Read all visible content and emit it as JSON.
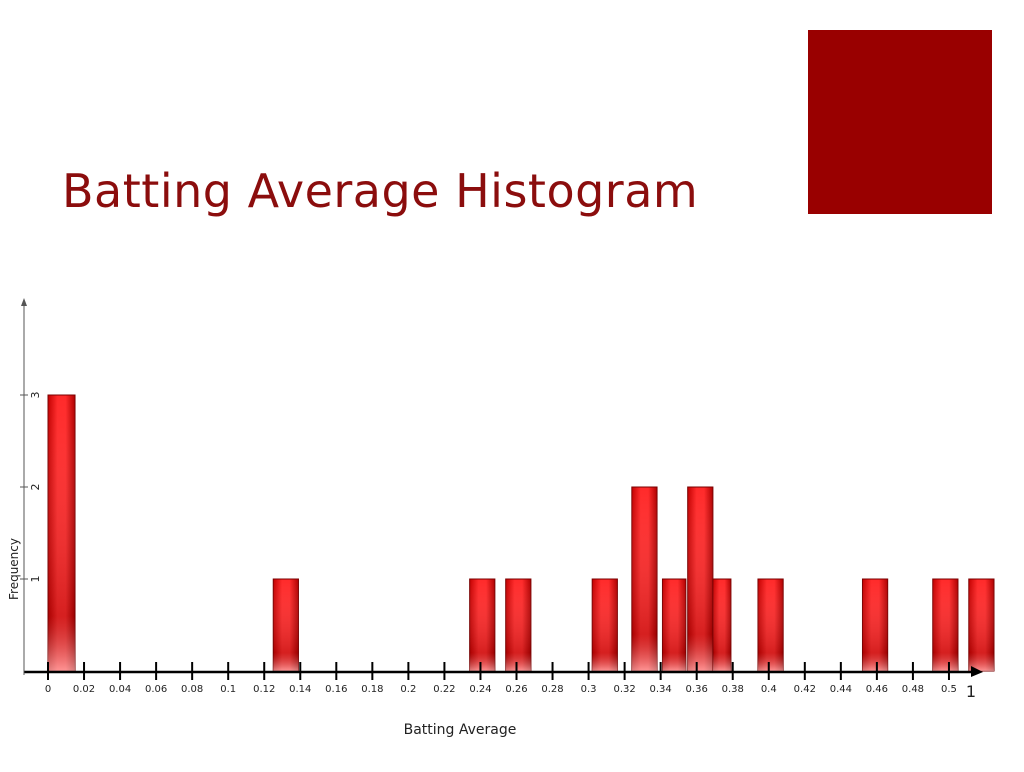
{
  "slide": {
    "title": "Batting Average Histogram"
  },
  "colors": {
    "title": "#8b0d0d",
    "accent_square": "#990000",
    "bar_fill": "#ee1111",
    "bar_stroke": "#7a0000",
    "axis": "#000000"
  },
  "chart_data": {
    "type": "bar",
    "xlabel": "Batting Average",
    "ylabel": "Frequency",
    "xlim": [
      0,
      0.52
    ],
    "ylim": [
      0,
      4
    ],
    "x_ticks": [
      "0",
      "0.02",
      "0.04",
      "0.06",
      "0.08",
      "0.1",
      "0.12",
      "0.14",
      "0.16",
      "0.18",
      "0.2",
      "0.22",
      "0.24",
      "0.26",
      "0.28",
      "0.3",
      "0.32",
      "0.34",
      "0.36",
      "0.38",
      "0.4",
      "0.42",
      "0.44",
      "0.46",
      "0.48",
      "0.5"
    ],
    "y_ticks": [
      "1",
      "2",
      "3"
    ],
    "axis_end_label": "1",
    "bars": [
      {
        "x0": 0.0,
        "x1": 0.015,
        "value": 3
      },
      {
        "x0": 0.125,
        "x1": 0.139,
        "value": 1
      },
      {
        "x0": 0.234,
        "x1": 0.248,
        "value": 1
      },
      {
        "x0": 0.254,
        "x1": 0.268,
        "value": 1
      },
      {
        "x0": 0.302,
        "x1": 0.316,
        "value": 1
      },
      {
        "x0": 0.324,
        "x1": 0.338,
        "value": 2
      },
      {
        "x0": 0.341,
        "x1": 0.354,
        "value": 1
      },
      {
        "x0": 0.355,
        "x1": 0.369,
        "value": 2
      },
      {
        "x0": 0.369,
        "x1": 0.379,
        "value": 1
      },
      {
        "x0": 0.394,
        "x1": 0.408,
        "value": 1
      },
      {
        "x0": 0.452,
        "x1": 0.466,
        "value": 1
      },
      {
        "x0": 0.491,
        "x1": 0.505,
        "value": 1
      },
      {
        "x0": 0.511,
        "x1": 0.525,
        "value": 1
      }
    ]
  }
}
